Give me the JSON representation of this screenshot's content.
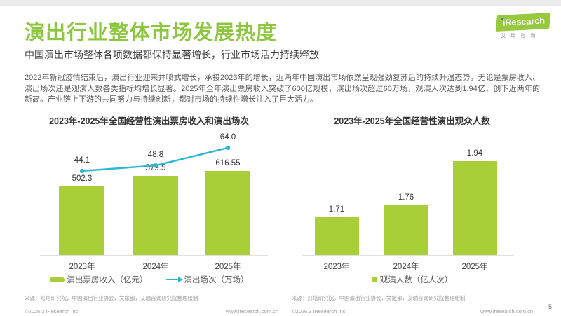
{
  "page": {
    "title": "演出行业整体市场发展热度",
    "subtitle": "中国演出市场整体各项数据都保持显著增长，行业市场活力持续释放",
    "body": "2022年新冠疫情结束后，演出行业迎来井喷式增长，承接2023年的增长，近两年中国演出市场依然呈现强劲复苏后的持续升温态势。无论是票房收入、演出场次还是观演人数各类指标均增长显著。2025年全年演出票房收入突破了600亿规模，演出场次超过60万场，观演人次达到1.94亿，创下近两年的新高。产业链上下游的共同努力与持续创新，都对市场的持续性增长注入了巨大活力。",
    "page_number": "5"
  },
  "logo": {
    "brand": "iResearch",
    "brand_cn": "艾瑞咨询"
  },
  "colors": {
    "title_green": "#8dc63f",
    "bar_green": "#a8ce38",
    "line_cyan": "#2bb7d6",
    "logo_green": "#97c93d"
  },
  "footer": {
    "source": "来源：灯塔研究院，中国演出行业协会，文旅部，艾瑞咨询研究院整理绘制",
    "copyright": "©2026.3 iResearch Inc.",
    "website": "www.iresearch.com.cn"
  },
  "chart_data": [
    {
      "type": "bar",
      "title": "2023年-2025年全国经营性演出票房收入和演出场次",
      "categories": [
        "2023年",
        "2024年",
        "2025年"
      ],
      "series": [
        {
          "name": "演出票房收入（亿元）",
          "type": "bar",
          "color": "#a8ce38",
          "values": [
            502.3,
            579.5,
            616.55
          ],
          "labels": [
            "502.3",
            "579.5",
            "616.55"
          ]
        },
        {
          "name": "演出场次（万场）",
          "type": "line",
          "color": "#2bb7d6",
          "values": [
            44.1,
            48.8,
            64.0
          ],
          "labels": [
            "44.1",
            "48.8",
            "64.0"
          ]
        }
      ],
      "bar_ylim": [
        0,
        650
      ],
      "line_ylim": [
        -29,
        78
      ],
      "grid": false,
      "legend_position": "bottom"
    },
    {
      "type": "bar",
      "title": "2023年-2025年全国经营性演出观众人数",
      "categories": [
        "2023年",
        "2024年",
        "2025年"
      ],
      "series": [
        {
          "name": "观演人数（亿人次）",
          "type": "bar",
          "color": "#a8ce38",
          "values": [
            1.71,
            1.76,
            1.94
          ],
          "labels": [
            "1.71",
            "1.76",
            "1.94"
          ]
        }
      ],
      "bar_ylim": [
        1.555,
        2.06
      ],
      "grid": false,
      "legend_position": "bottom"
    }
  ]
}
